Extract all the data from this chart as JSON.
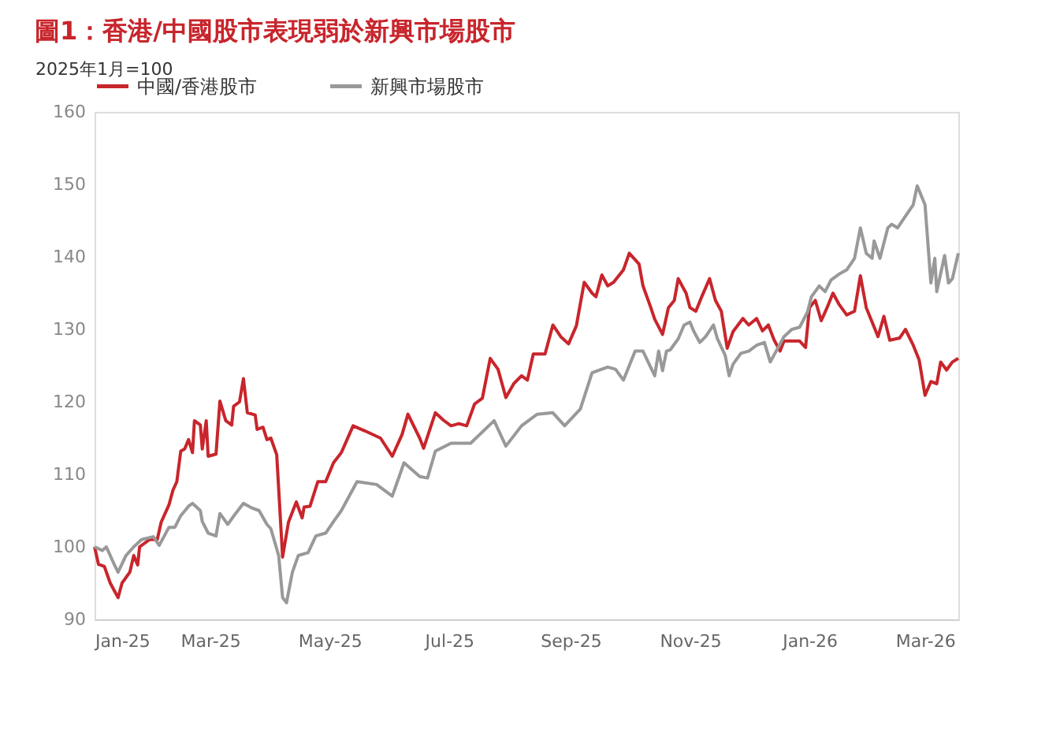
{
  "chart_data": {
    "type": "line",
    "title": "圖1：香港/中國股市表現弱於新興市場股市",
    "ylabel": "2025年1月=100",
    "ylim": [
      90,
      160
    ],
    "yticks": [
      90,
      100,
      110,
      120,
      130,
      140,
      150,
      160
    ],
    "xlim": [
      "2025-01-01",
      "2026-03-18"
    ],
    "xticks": [
      {
        "value": "2025-01-01",
        "label": "Jan-25"
      },
      {
        "value": "2025-03-01",
        "label": "Mar-25"
      },
      {
        "value": "2025-05-01",
        "label": "May-25"
      },
      {
        "value": "2025-07-01",
        "label": "Jul-25"
      },
      {
        "value": "2025-09-01",
        "label": "Sep-25"
      },
      {
        "value": "2025-11-01",
        "label": "Nov-25"
      },
      {
        "value": "2026-01-01",
        "label": "Jan-26"
      },
      {
        "value": "2026-03-01",
        "label": "Mar-26"
      }
    ],
    "grid": false,
    "legend": "top",
    "marker": "none",
    "line_style": "solid",
    "series": [
      {
        "name": "中國/香港股市",
        "color": "#c8252c",
        "x": [
          "2025-01-01",
          "2025-01-03",
          "2025-01-06",
          "2025-01-09",
          "2025-01-11",
          "2025-01-13",
          "2025-01-15",
          "2025-01-19",
          "2025-01-21",
          "2025-01-23",
          "2025-01-24",
          "2025-01-29",
          "2025-02-02",
          "2025-02-04",
          "2025-02-08",
          "2025-02-10",
          "2025-02-12",
          "2025-02-14",
          "2025-02-16",
          "2025-02-18",
          "2025-02-20",
          "2025-02-21",
          "2025-02-24",
          "2025-02-25",
          "2025-02-27",
          "2025-02-28",
          "2025-03-04",
          "2025-03-06",
          "2025-03-09",
          "2025-03-12",
          "2025-03-13",
          "2025-03-16",
          "2025-03-18",
          "2025-03-20",
          "2025-03-24",
          "2025-03-25",
          "2025-03-28",
          "2025-03-30",
          "2025-04-01",
          "2025-04-04",
          "2025-04-07",
          "2025-04-10",
          "2025-04-14",
          "2025-04-17",
          "2025-04-18",
          "2025-04-21",
          "2025-04-25",
          "2025-04-29",
          "2025-05-03",
          "2025-05-07",
          "2025-05-13",
          "2025-05-19",
          "2025-05-27",
          "2025-06-02",
          "2025-06-07",
          "2025-06-10",
          "2025-06-16",
          "2025-06-18",
          "2025-06-24",
          "2025-06-28",
          "2025-07-02",
          "2025-07-06",
          "2025-07-10",
          "2025-07-14",
          "2025-07-18",
          "2025-07-22",
          "2025-07-26",
          "2025-07-30",
          "2025-08-03",
          "2025-08-07",
          "2025-08-10",
          "2025-08-13",
          "2025-08-19",
          "2025-08-23",
          "2025-08-27",
          "2025-08-31",
          "2025-09-04",
          "2025-09-08",
          "2025-09-12",
          "2025-09-14",
          "2025-09-17",
          "2025-09-20",
          "2025-09-23",
          "2025-09-28",
          "2025-10-01",
          "2025-10-06",
          "2025-10-08",
          "2025-10-12",
          "2025-10-14",
          "2025-10-18",
          "2025-10-21",
          "2025-10-24",
          "2025-10-26",
          "2025-10-30",
          "2025-11-01",
          "2025-11-04",
          "2025-11-07",
          "2025-11-11",
          "2025-11-14",
          "2025-11-17",
          "2025-11-20",
          "2025-11-23",
          "2025-11-28",
          "2025-12-01",
          "2025-12-05",
          "2025-12-08",
          "2025-12-11",
          "2025-12-14",
          "2025-12-17",
          "2025-12-19",
          "2025-12-27",
          "2025-12-30",
          "2026-01-01",
          "2026-01-04",
          "2026-01-07",
          "2026-01-10",
          "2026-01-13",
          "2026-01-16",
          "2026-01-20",
          "2026-01-24",
          "2026-01-27",
          "2026-01-30",
          "2026-02-02",
          "2026-02-05",
          "2026-02-08",
          "2026-02-11",
          "2026-02-16",
          "2026-02-19",
          "2026-02-23",
          "2026-02-26",
          "2026-03-01",
          "2026-03-04",
          "2026-03-07",
          "2026-03-09",
          "2026-03-12",
          "2026-03-15",
          "2026-03-18"
        ],
        "values": [
          100,
          97.6,
          97.3,
          95,
          94,
          93,
          95,
          96.5,
          98.8,
          97.5,
          100,
          101,
          101,
          103.4,
          105.8,
          107.8,
          109,
          113.2,
          113.5,
          114.8,
          113,
          117.4,
          116.8,
          113.5,
          117.4,
          112.5,
          112.8,
          120.1,
          117.4,
          116.8,
          119.4,
          120,
          123.2,
          118.5,
          118.2,
          116.2,
          116.5,
          114.8,
          115,
          112.7,
          98.6,
          103.4,
          106.2,
          104,
          105.5,
          105.6,
          109,
          109,
          111.6,
          113,
          116.7,
          116,
          115,
          112.5,
          115.5,
          118.3,
          115,
          113.6,
          118.5,
          117.5,
          116.7,
          117,
          116.7,
          119.7,
          120.5,
          126,
          124.5,
          120.6,
          122.5,
          123.6,
          123,
          126.6,
          126.6,
          130.6,
          129,
          128,
          130.5,
          136.5,
          135,
          134.5,
          137.5,
          136,
          136.5,
          138.2,
          140.5,
          139,
          136,
          133,
          131.4,
          129.3,
          133,
          134,
          137,
          135,
          133,
          132.5,
          134.5,
          137,
          134,
          132.5,
          127.4,
          129.7,
          131.5,
          130.6,
          131.5,
          129.8,
          130.6,
          128.5,
          127,
          128.4,
          128.4,
          127.5,
          133,
          134,
          131.2,
          133,
          135,
          133.5,
          132,
          132.5,
          137.4,
          133,
          131,
          129,
          131.8,
          128.5,
          128.8,
          130,
          127.8,
          125.8,
          120.9,
          122.8,
          122.5,
          125.5,
          124.4,
          125.5,
          126
        ]
      },
      {
        "name": "新興市場股市",
        "color": "#999999",
        "x": [
          "2025-01-01",
          "2025-01-05",
          "2025-01-07",
          "2025-01-11",
          "2025-01-13",
          "2025-01-17",
          "2025-01-21",
          "2025-01-25",
          "2025-01-31",
          "2025-02-03",
          "2025-02-08",
          "2025-02-11",
          "2025-02-14",
          "2025-02-18",
          "2025-02-20",
          "2025-02-24",
          "2025-02-25",
          "2025-02-28",
          "2025-03-04",
          "2025-03-06",
          "2025-03-10",
          "2025-03-14",
          "2025-03-18",
          "2025-03-22",
          "2025-03-26",
          "2025-03-30",
          "2025-04-01",
          "2025-04-05",
          "2025-04-07",
          "2025-04-09",
          "2025-04-12",
          "2025-04-15",
          "2025-04-20",
          "2025-04-24",
          "2025-04-29",
          "2025-05-03",
          "2025-05-07",
          "2025-05-15",
          "2025-05-25",
          "2025-06-02",
          "2025-06-08",
          "2025-06-16",
          "2025-06-20",
          "2025-06-24",
          "2025-07-02",
          "2025-07-12",
          "2025-07-24",
          "2025-07-30",
          "2025-08-07",
          "2025-08-15",
          "2025-08-23",
          "2025-08-29",
          "2025-09-06",
          "2025-09-12",
          "2025-09-20",
          "2025-09-24",
          "2025-09-28",
          "2025-10-04",
          "2025-10-08",
          "2025-10-14",
          "2025-10-16",
          "2025-10-18",
          "2025-10-20",
          "2025-10-22",
          "2025-10-26",
          "2025-10-29",
          "2025-11-01",
          "2025-11-03",
          "2025-11-06",
          "2025-11-09",
          "2025-11-13",
          "2025-11-15",
          "2025-11-19",
          "2025-11-21",
          "2025-11-23",
          "2025-11-27",
          "2025-12-01",
          "2025-12-05",
          "2025-12-09",
          "2025-12-12",
          "2025-12-15",
          "2025-12-19",
          "2025-12-23",
          "2025-12-27",
          "2025-12-31",
          "2026-01-02",
          "2026-01-06",
          "2026-01-09",
          "2026-01-12",
          "2026-01-16",
          "2026-01-20",
          "2026-01-24",
          "2026-01-27",
          "2026-01-30",
          "2026-02-02",
          "2026-02-03",
          "2026-02-06",
          "2026-02-10",
          "2026-02-12",
          "2026-02-15",
          "2026-02-19",
          "2026-02-23",
          "2026-02-25",
          "2026-03-01",
          "2026-03-04",
          "2026-03-06",
          "2026-03-07",
          "2026-03-11",
          "2026-03-13",
          "2026-03-15",
          "2026-03-18"
        ],
        "values": [
          100,
          99.5,
          100,
          97.6,
          96.5,
          98.8,
          100,
          101,
          101.4,
          100.2,
          102.7,
          102.7,
          104.3,
          105.6,
          106,
          105,
          103.5,
          101.9,
          101.5,
          104.6,
          103.1,
          104.6,
          106,
          105.4,
          105,
          103.1,
          102.5,
          98.8,
          93,
          92.3,
          96.5,
          98.8,
          99.2,
          101.5,
          101.9,
          103.5,
          105,
          109,
          108.6,
          107,
          111.6,
          109.7,
          109.5,
          113.2,
          114.3,
          114.3,
          117.4,
          113.9,
          116.7,
          118.3,
          118.5,
          116.7,
          119,
          124,
          124.8,
          124.5,
          123,
          127,
          127,
          123.6,
          127,
          124.3,
          127,
          127.2,
          128.7,
          130.6,
          131,
          129.7,
          128.2,
          129,
          130.6,
          128.7,
          126.4,
          123.6,
          125.2,
          126.7,
          127,
          127.8,
          128.2,
          125.5,
          127,
          129,
          130,
          130.3,
          132.4,
          134.5,
          136,
          135.2,
          136.8,
          137.6,
          138.2,
          139.8,
          144,
          140.5,
          139.8,
          142.2,
          139.8,
          144,
          144.5,
          144,
          145.6,
          147.2,
          149.8,
          147.2,
          136.4,
          139.8,
          135.2,
          140.2,
          136.4,
          137,
          140.5
        ]
      }
    ]
  }
}
